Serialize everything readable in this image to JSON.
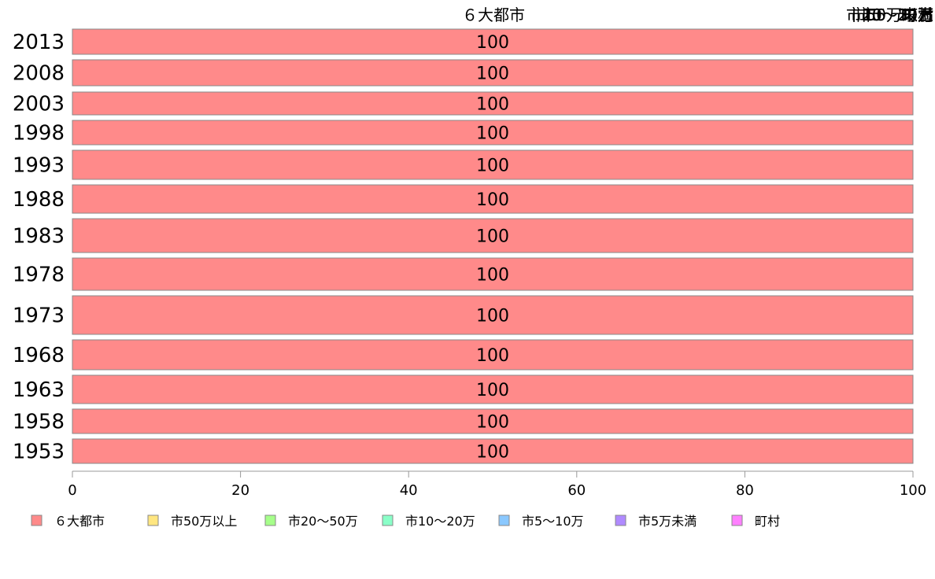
{
  "chart_data": {
    "type": "bar",
    "orientation": "horizontal",
    "stacked": true,
    "categories": [
      "2013",
      "2008",
      "2003",
      "1998",
      "1993",
      "1988",
      "1983",
      "1978",
      "1973",
      "1968",
      "1963",
      "1958",
      "1953"
    ],
    "series": [
      {
        "name": "６大都市",
        "color": "#ff8a8a",
        "values": [
          100,
          100,
          100,
          100,
          100,
          100,
          100,
          100,
          100,
          100,
          100,
          100,
          100
        ]
      },
      {
        "name": "市50万以上",
        "color": "#ffe680",
        "values": [
          0,
          0,
          0,
          0,
          0,
          0,
          0,
          0,
          0,
          0,
          0,
          0,
          0
        ]
      },
      {
        "name": "市20〜50万",
        "color": "#a6ff8a",
        "values": [
          0,
          0,
          0,
          0,
          0,
          0,
          0,
          0,
          0,
          0,
          0,
          0,
          0
        ]
      },
      {
        "name": "市10〜20万",
        "color": "#8affc8",
        "values": [
          0,
          0,
          0,
          0,
          0,
          0,
          0,
          0,
          0,
          0,
          0,
          0,
          0
        ]
      },
      {
        "name": "市5〜10万",
        "color": "#8ac8ff",
        "values": [
          0,
          0,
          0,
          0,
          0,
          0,
          0,
          0,
          0,
          0,
          0,
          0,
          0
        ]
      },
      {
        "name": "市5万未満",
        "color": "#b08aff",
        "values": [
          0,
          0,
          0,
          0,
          0,
          0,
          0,
          0,
          0,
          0,
          0,
          0,
          0
        ]
      },
      {
        "name": "町村",
        "color": "#ff80ff",
        "values": [
          0,
          0,
          0,
          0,
          0,
          0,
          0,
          0,
          0,
          0,
          0,
          0,
          0
        ]
      }
    ],
    "data_labels": [
      "100",
      "100",
      "100",
      "100",
      "100",
      "100",
      "100",
      "100",
      "100",
      "100",
      "100",
      "100",
      "100"
    ],
    "top_labels": [
      "６大都市",
      "町村",
      "市5万未満",
      "市5〜10万",
      "市10〜20万",
      "市20〜50万",
      "市50万以上"
    ],
    "xlim": [
      0,
      100
    ],
    "xticks": [
      "0",
      "20",
      "40",
      "60",
      "80",
      "100"
    ],
    "grid": false,
    "legend_position": "bottom"
  }
}
